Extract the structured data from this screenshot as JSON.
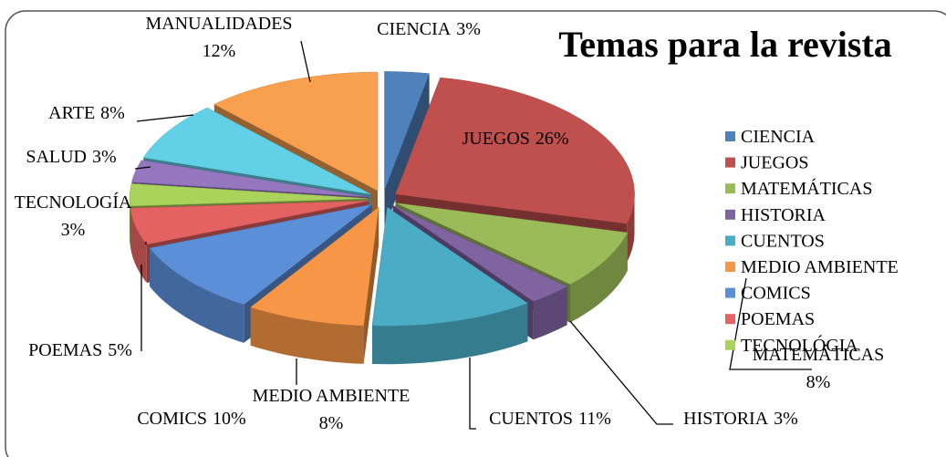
{
  "chart_data": {
    "type": "pie3d",
    "title": "Temas para la revista",
    "categories": [
      "CIENCIA",
      "JUEGOS",
      "MATEMÁTICAS",
      "HISTORIA",
      "CUENTOS",
      "MEDIO AMBIENTE",
      "COMICS",
      "POEMAS",
      "TECNOLOGÍA",
      "SALUD",
      "ARTE",
      "MANUALIDADES"
    ],
    "values": [
      3,
      26,
      8,
      3,
      11,
      8,
      10,
      5,
      3,
      3,
      8,
      12
    ],
    "value_labels": [
      "3%",
      "26%",
      "8%",
      "3%",
      "11%",
      "8%",
      "10%",
      "5%",
      "3%",
      "3%",
      "8%",
      "12%"
    ],
    "colors": [
      "#4f81bd",
      "#c0504d",
      "#9bbb59",
      "#8064a2",
      "#4bacc6",
      "#f79646",
      "#5b8fd8",
      "#e46262",
      "#a9d35a",
      "#9477be",
      "#62d0e6",
      "#f9a04e"
    ],
    "legend": [
      "CIENCIA",
      "JUEGOS",
      "MATEMÁTICAS",
      "HISTORIA",
      "CUENTOS",
      "MEDIO AMBIENTE",
      "COMICS",
      "POEMAS",
      "TECNOLÓGIA"
    ]
  }
}
